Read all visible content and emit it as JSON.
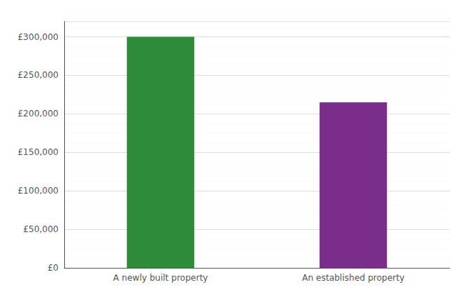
{
  "chart_data": {
    "type": "bar",
    "categories": [
      "A newly built property",
      "An established property"
    ],
    "values": [
      300000,
      215000
    ],
    "colors": [
      "#2e8b3a",
      "#7b2d8b"
    ],
    "ylim": [
      0,
      320000
    ],
    "yticks": [
      {
        "value": 0,
        "label": "£0"
      },
      {
        "value": 50000,
        "label": "£50,000"
      },
      {
        "value": 100000,
        "label": "£100,000"
      },
      {
        "value": 150000,
        "label": "£150,000"
      },
      {
        "value": 200000,
        "label": "£200,000"
      },
      {
        "value": 250000,
        "label": "£250,000"
      },
      {
        "value": 300000,
        "label": "£300,000"
      }
    ],
    "grid": true
  }
}
